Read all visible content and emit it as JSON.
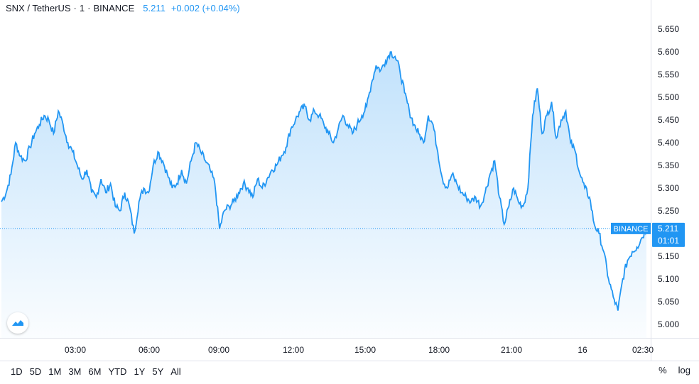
{
  "header": {
    "symbol": "SNX / TetherUS",
    "interval": "1",
    "exchange": "BINANCE",
    "last_price": "5.211",
    "change": "+0.002 (+0.04%)"
  },
  "price_label": {
    "exchange": "BINANCE",
    "price": "5.211",
    "countdown": "01:01"
  },
  "range_buttons": [
    "1D",
    "5D",
    "1M",
    "3M",
    "6M",
    "YTD",
    "1Y",
    "5Y",
    "All"
  ],
  "right_buttons": [
    "%",
    "log"
  ],
  "colors": {
    "line": "#2196f3",
    "label_bg": "#2196f3",
    "grid": "#e0e3eb"
  },
  "chart_data": {
    "type": "area",
    "y_ticks": [
      "5.650",
      "5.600",
      "5.550",
      "5.500",
      "5.450",
      "5.400",
      "5.350",
      "5.300",
      "5.250",
      "5.200",
      "5.150",
      "5.100",
      "5.050",
      "5.000"
    ],
    "x_ticks": [
      "03:00",
      "06:00",
      "09:00",
      "12:00",
      "15:00",
      "18:00",
      "21:00",
      "16",
      "02:30"
    ],
    "ylim": [
      4.97,
      5.68
    ],
    "last_value": 5.211,
    "series": [
      {
        "values": [
          5.27,
          5.29,
          5.33,
          5.4,
          5.37,
          5.36,
          5.39,
          5.42,
          5.44,
          5.46,
          5.45,
          5.42,
          5.47,
          5.44,
          5.4,
          5.38,
          5.35,
          5.32,
          5.34,
          5.29,
          5.28,
          5.32,
          5.29,
          5.31,
          5.26,
          5.25,
          5.29,
          5.26,
          5.2,
          5.27,
          5.3,
          5.29,
          5.35,
          5.38,
          5.36,
          5.33,
          5.3,
          5.31,
          5.34,
          5.31,
          5.36,
          5.4,
          5.38,
          5.36,
          5.34,
          5.31,
          5.21,
          5.25,
          5.26,
          5.27,
          5.29,
          5.31,
          5.3,
          5.28,
          5.32,
          5.3,
          5.32,
          5.34,
          5.35,
          5.37,
          5.39,
          5.43,
          5.45,
          5.47,
          5.48,
          5.45,
          5.47,
          5.46,
          5.44,
          5.42,
          5.4,
          5.43,
          5.46,
          5.44,
          5.42,
          5.44,
          5.46,
          5.48,
          5.53,
          5.57,
          5.56,
          5.58,
          5.6,
          5.59,
          5.56,
          5.51,
          5.47,
          5.44,
          5.42,
          5.4,
          5.46,
          5.44,
          5.38,
          5.32,
          5.3,
          5.33,
          5.31,
          5.29,
          5.28,
          5.27,
          5.28,
          5.26,
          5.29,
          5.33,
          5.36,
          5.28,
          5.22,
          5.26,
          5.3,
          5.27,
          5.26,
          5.3,
          5.46,
          5.52,
          5.42,
          5.46,
          5.49,
          5.41,
          5.45,
          5.47,
          5.4,
          5.38,
          5.33,
          5.3,
          5.28,
          5.22,
          5.2,
          5.16,
          5.1,
          5.06,
          5.03,
          5.1,
          5.14,
          5.16,
          5.17,
          5.19,
          5.21
        ]
      }
    ]
  }
}
